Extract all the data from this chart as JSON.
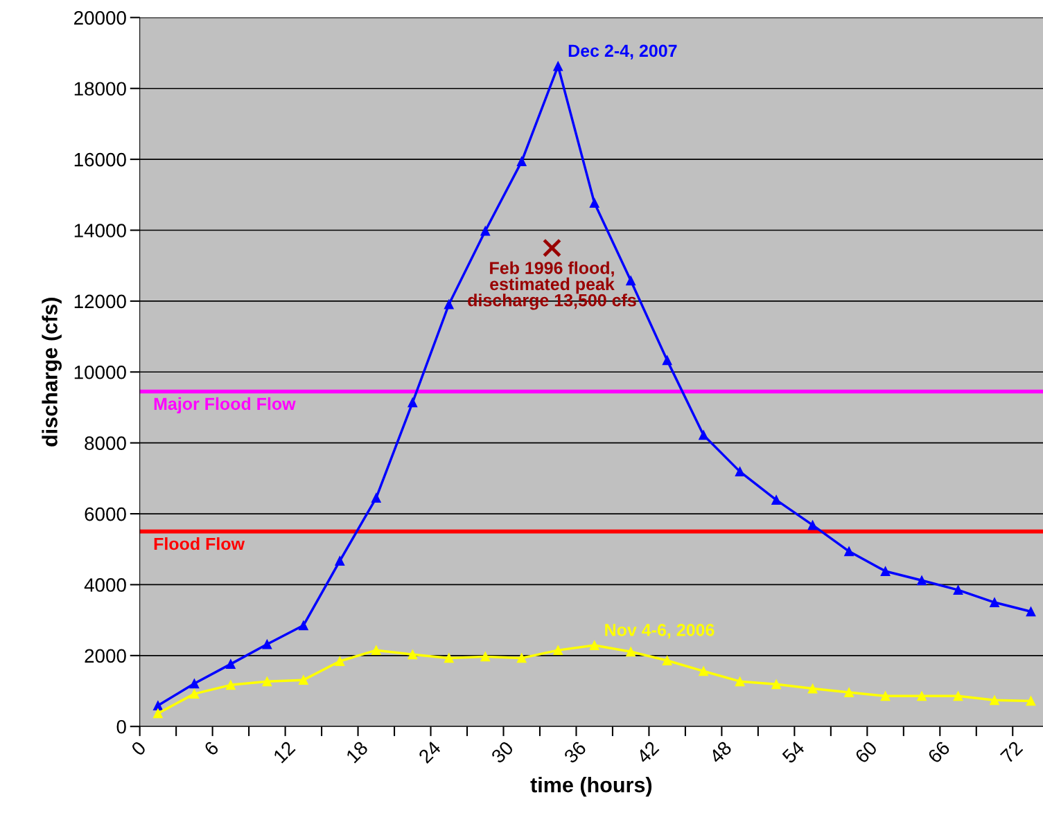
{
  "chart_data": {
    "type": "line",
    "xlabel": "time (hours)",
    "ylabel": "discharge (cfs)",
    "x": [
      1.5,
      4.5,
      7.5,
      10.5,
      13.5,
      16.5,
      19.5,
      22.5,
      25.5,
      28.5,
      31.5,
      34.5,
      37.5,
      40.5,
      43.5,
      46.5,
      49.5,
      52.5,
      55.5,
      58.5,
      61.5,
      64.5,
      67.5,
      70.5,
      73.5
    ],
    "series": [
      {
        "name": "Dec 2-4, 2007",
        "color": "#0000ff",
        "values": [
          590,
          1210,
          1760,
          2320,
          2850,
          4670,
          6450,
          9140,
          11910,
          13980,
          15940,
          18630,
          14770,
          12580,
          10330,
          8220,
          7190,
          6390,
          5680,
          4940,
          4380,
          4120,
          3850,
          3500,
          3240
        ]
      },
      {
        "name": "Nov 4-6, 2006",
        "color": "#ffff00",
        "values": [
          370,
          920,
          1170,
          1270,
          1310,
          1840,
          2150,
          2030,
          1930,
          1970,
          1930,
          2150,
          2290,
          2110,
          1860,
          1560,
          1270,
          1190,
          1070,
          960,
          860,
          860,
          860,
          740,
          720
        ]
      },
      {
        "type": "scatter",
        "color": "#990000",
        "marker": "cross",
        "x": [
          34
        ],
        "values": [
          13500
        ]
      }
    ],
    "marker": "triangle",
    "line_style": "solid",
    "ref_lines": [
      {
        "axis": "y",
        "value": 9450,
        "label": "Major Flood Flow",
        "color": "#ff00ff"
      },
      {
        "axis": "y",
        "value": 5500,
        "label": "Flood Flow",
        "color": "#ff0000"
      }
    ],
    "annotations": [
      {
        "text": "Feb 1996 flood,\nestimated peak\ndischarge 13,500 cfs",
        "x": 34,
        "y": 13500
      }
    ],
    "xlim": [
      0,
      74.5
    ],
    "xticks": [
      0,
      {
        "value": 3,
        "label": null
      },
      6,
      {
        "value": 9,
        "label": null
      },
      12,
      {
        "value": 15,
        "label": null
      },
      18,
      {
        "value": 21,
        "label": null
      },
      24,
      {
        "value": 27,
        "label": null
      },
      30,
      {
        "value": 33,
        "label": null
      },
      36,
      {
        "value": 39,
        "label": null
      },
      42,
      {
        "value": 45,
        "label": null
      },
      48,
      {
        "value": 51,
        "label": null
      },
      54,
      {
        "value": 57,
        "label": null
      },
      60,
      {
        "value": 63,
        "label": null
      },
      66,
      {
        "value": 69,
        "label": null
      },
      72
    ],
    "ylim": [
      0,
      20000
    ],
    "yticks": [
      0,
      2000,
      4000,
      6000,
      8000,
      10000,
      12000,
      14000,
      16000,
      18000,
      20000
    ],
    "grid": "y",
    "legend": false
  }
}
